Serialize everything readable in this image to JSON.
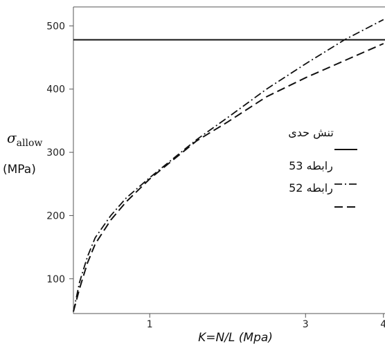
{
  "chart_data": {
    "type": "line",
    "xlabel": "K=N/L (Mpa)",
    "ylabel_symbol": "σ",
    "ylabel_subscript": "allow",
    "ylabel_unit": "(MPa)",
    "xlim": [
      0.02,
      4.02
    ],
    "ylim": [
      45,
      530
    ],
    "x_ticks": [
      1,
      3,
      4
    ],
    "x_tick_labels": [
      "1",
      "3",
      "4"
    ],
    "y_ticks": [
      100,
      200,
      300,
      400,
      500
    ],
    "y_tick_labels": [
      "100",
      "200",
      "300",
      "400",
      "500"
    ],
    "grid": false,
    "legend_position": "right",
    "series": [
      {
        "name": "تنش حدی",
        "style": "solid",
        "x": [
          0.02,
          4.02
        ],
        "y": [
          478,
          478
        ]
      },
      {
        "name": "رابطه 53",
        "style": "dashdot",
        "x": [
          0.02,
          0.1,
          0.2,
          0.3,
          0.5,
          0.7,
          1.0,
          1.3,
          1.6,
          2.0,
          2.5,
          3.0,
          3.5,
          4.0
        ],
        "y": [
          48,
          95,
          135,
          165,
          200,
          228,
          260,
          290,
          320,
          355,
          400,
          440,
          478,
          510
        ]
      },
      {
        "name": "رابطه 52",
        "style": "dashed",
        "x": [
          0.02,
          0.1,
          0.2,
          0.3,
          0.5,
          0.7,
          1.0,
          1.3,
          1.6,
          2.0,
          2.5,
          3.0,
          3.5,
          4.0
        ],
        "y": [
          48,
          85,
          125,
          155,
          193,
          222,
          258,
          288,
          318,
          348,
          388,
          418,
          445,
          472
        ]
      }
    ]
  }
}
